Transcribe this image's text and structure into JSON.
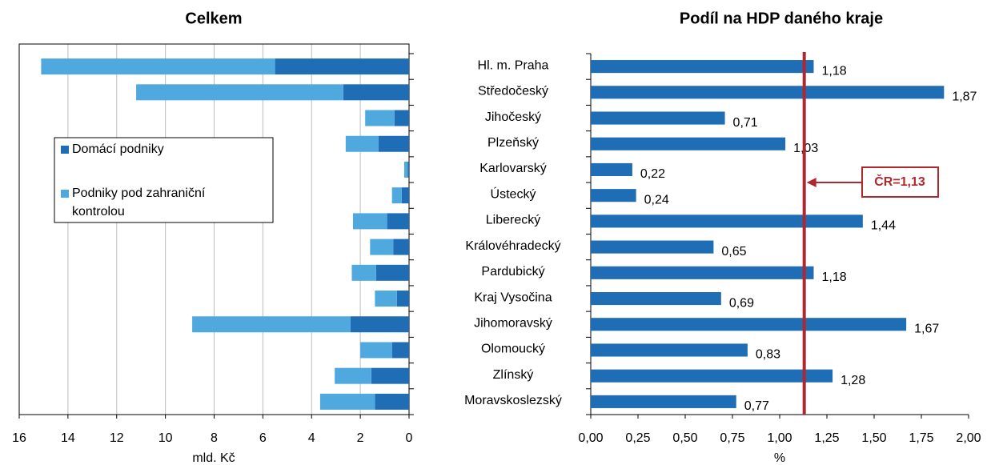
{
  "chart_data": [
    {
      "type": "stacked_bar_h",
      "title": "Celkem",
      "x_label": "mld. Kč",
      "xlim": [
        0,
        16
      ],
      "x_reversed": true,
      "xticks": [
        0,
        2,
        4,
        6,
        8,
        10,
        12,
        14,
        16
      ],
      "grid": true,
      "legend_position": "center-left",
      "series": [
        {
          "name": "Domácí podniky",
          "color": "#1f6db5",
          "values": [
            5.5,
            2.7,
            0.6,
            1.25,
            0.05,
            0.3,
            0.9,
            0.65,
            1.35,
            0.5,
            2.4,
            0.7,
            1.55,
            1.4
          ]
        },
        {
          "name": "Podniky pod zahraniční kontrolou",
          "color": "#4fa8de",
          "values": [
            9.6,
            8.5,
            1.2,
            1.35,
            0.15,
            0.4,
            1.4,
            0.95,
            1.0,
            0.9,
            6.5,
            1.3,
            1.5,
            2.25
          ]
        }
      ]
    },
    {
      "type": "bar_h",
      "title": "Podíl na HDP daného kraje",
      "x_label": "%",
      "categories": [
        "Hl. m. Praha",
        "Středočeský",
        "Jihočeský",
        "Plzeňský",
        "Karlovarský",
        "Ústecký",
        "Liberecký",
        "Královéhradecký",
        "Pardubický",
        "Kraj Vysočina",
        "Jihomoravský",
        "Olomoucký",
        "Zlínský",
        "Moravskoslezský"
      ],
      "values": [
        1.18,
        1.87,
        0.71,
        1.03,
        0.22,
        0.24,
        1.44,
        0.65,
        1.18,
        0.69,
        1.67,
        0.83,
        1.28,
        0.77
      ],
      "value_labels": [
        "1,18",
        "1,87",
        "0,71",
        "1,03",
        "0,22",
        "0,24",
        "1,44",
        "0,65",
        "1,18",
        "0,69",
        "1,67",
        "0,83",
        "1,28",
        "0,77"
      ],
      "color": "#1f6db5",
      "xlim": [
        0,
        2
      ],
      "xticks": [
        {
          "value": 0,
          "label": "0,00"
        },
        {
          "value": 0.25,
          "label": "0,25"
        },
        {
          "value": 0.5,
          "label": "0,50"
        },
        {
          "value": 0.75,
          "label": "0,75"
        },
        {
          "value": 1,
          "label": "1,00"
        },
        {
          "value": 1.25,
          "label": "1,25"
        },
        {
          "value": 1.5,
          "label": "1,50"
        },
        {
          "value": 1.75,
          "label": "1,75"
        },
        {
          "value": 2,
          "label": "2,00"
        }
      ],
      "reference_line": {
        "value": 1.13,
        "label": "ČR=1,13",
        "color": "#b0282e"
      }
    }
  ]
}
